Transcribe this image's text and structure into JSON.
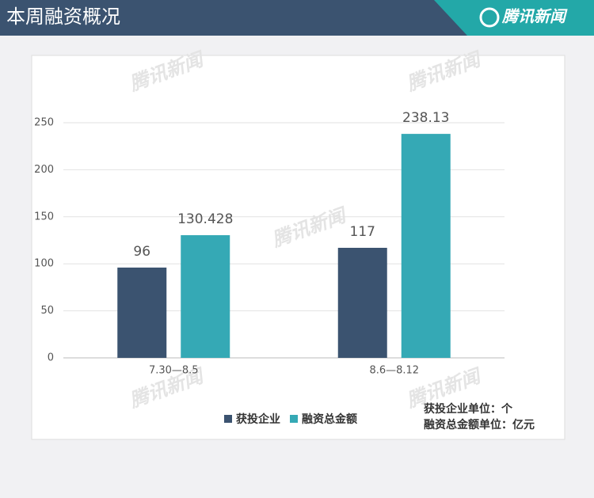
{
  "header": {
    "title": "本周融资概况",
    "logo": "腾讯新闻"
  },
  "chart_data": {
    "type": "bar",
    "watermark": "腾讯新闻",
    "categories": [
      "7.30—8.5",
      "8.6—8.12"
    ],
    "series": [
      {
        "name": "获投企业",
        "color": "#3b5370",
        "values": [
          96,
          117
        ]
      },
      {
        "name": "融资总金额",
        "color": "#35a9b5",
        "values": [
          130.428,
          238.13
        ]
      }
    ],
    "ylim": [
      0,
      250
    ],
    "yticks": [
      0,
      50,
      100,
      150,
      200,
      250
    ],
    "grid": true,
    "annotations": [
      "获投企业单位：个",
      "融资总金额单位：亿元"
    ]
  }
}
